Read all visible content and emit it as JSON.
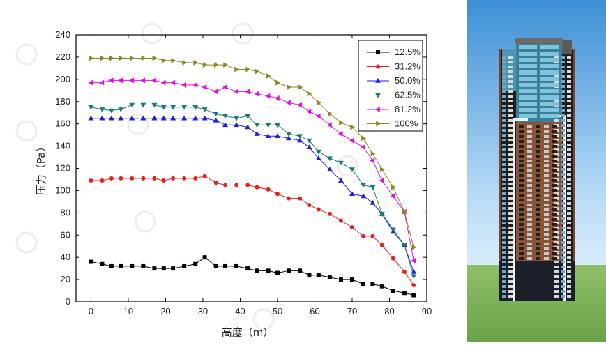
{
  "chart_data": {
    "type": "line",
    "xlabel": "高度（m）",
    "ylabel": "压力（Pa）",
    "xlim": [
      -4,
      90
    ],
    "ylim": [
      0,
      240
    ],
    "xticks": [
      0,
      10,
      20,
      30,
      40,
      50,
      60,
      70,
      80,
      90
    ],
    "yticks": [
      0,
      20,
      40,
      60,
      80,
      100,
      120,
      140,
      160,
      180,
      200,
      220,
      240
    ],
    "legend_position": "top-right",
    "x": [
      0,
      3,
      5.5,
      8,
      11,
      14,
      17,
      19.5,
      22,
      25,
      28,
      30.5,
      33.5,
      36,
      39,
      42,
      44.5,
      47.5,
      50,
      53,
      56,
      58.5,
      61,
      64,
      67,
      70,
      73,
      75.5,
      78,
      81,
      84,
      86.5
    ],
    "series": [
      {
        "name": "12.5%",
        "color": "#000000",
        "marker": "square",
        "values": [
          36,
          34,
          32,
          32,
          32,
          32,
          30,
          30,
          30,
          32,
          34,
          40,
          32,
          32,
          32,
          30,
          28,
          28,
          26,
          28,
          28,
          24,
          24,
          22,
          20,
          20,
          16,
          16,
          14,
          10,
          8,
          6
        ]
      },
      {
        "name": "31.2%",
        "color": "#e8201a",
        "marker": "circle",
        "values": [
          109,
          109,
          111,
          111,
          111,
          111,
          111,
          109,
          111,
          111,
          111,
          113,
          107,
          105,
          105,
          105,
          103,
          101,
          97,
          93,
          93,
          87,
          83,
          79,
          73,
          67,
          59,
          59,
          51,
          39,
          27,
          15
        ]
      },
      {
        "name": "50.0%",
        "color": "#1f1fd8",
        "marker": "triangle-up",
        "values": [
          165,
          165,
          165,
          165,
          165,
          165,
          165,
          165,
          165,
          165,
          165,
          165,
          163,
          159,
          159,
          157,
          151,
          149,
          149,
          147,
          145,
          139,
          129,
          119,
          109,
          97,
          95,
          89,
          79,
          63,
          51,
          27
        ]
      },
      {
        "name": "62.5%",
        "color": "#1a7a7a",
        "marker": "triangle-down",
        "values": [
          175,
          173,
          172,
          173,
          177,
          177,
          177,
          175,
          175,
          175,
          175,
          173,
          169,
          167,
          165,
          167,
          159,
          159,
          159,
          151,
          149,
          145,
          135,
          129,
          125,
          119,
          105,
          103,
          79,
          65,
          51,
          23
        ]
      },
      {
        "name": "81.2%",
        "color": "#e010e0",
        "marker": "triangle-left",
        "values": [
          197,
          197,
          199,
          199,
          199,
          199,
          199,
          197,
          197,
          195,
          195,
          193,
          189,
          193,
          189,
          189,
          187,
          185,
          183,
          179,
          177,
          171,
          167,
          159,
          151,
          145,
          139,
          127,
          109,
          95,
          81,
          37
        ]
      },
      {
        "name": "100%",
        "color": "#8a8a20",
        "marker": "triangle-right",
        "values": [
          219,
          219,
          219,
          219,
          219,
          219,
          219,
          217,
          217,
          215,
          215,
          213,
          213,
          213,
          209,
          209,
          207,
          203,
          197,
          193,
          193,
          187,
          179,
          169,
          161,
          157,
          147,
          133,
          119,
          103,
          81,
          49
        ]
      }
    ]
  }
}
